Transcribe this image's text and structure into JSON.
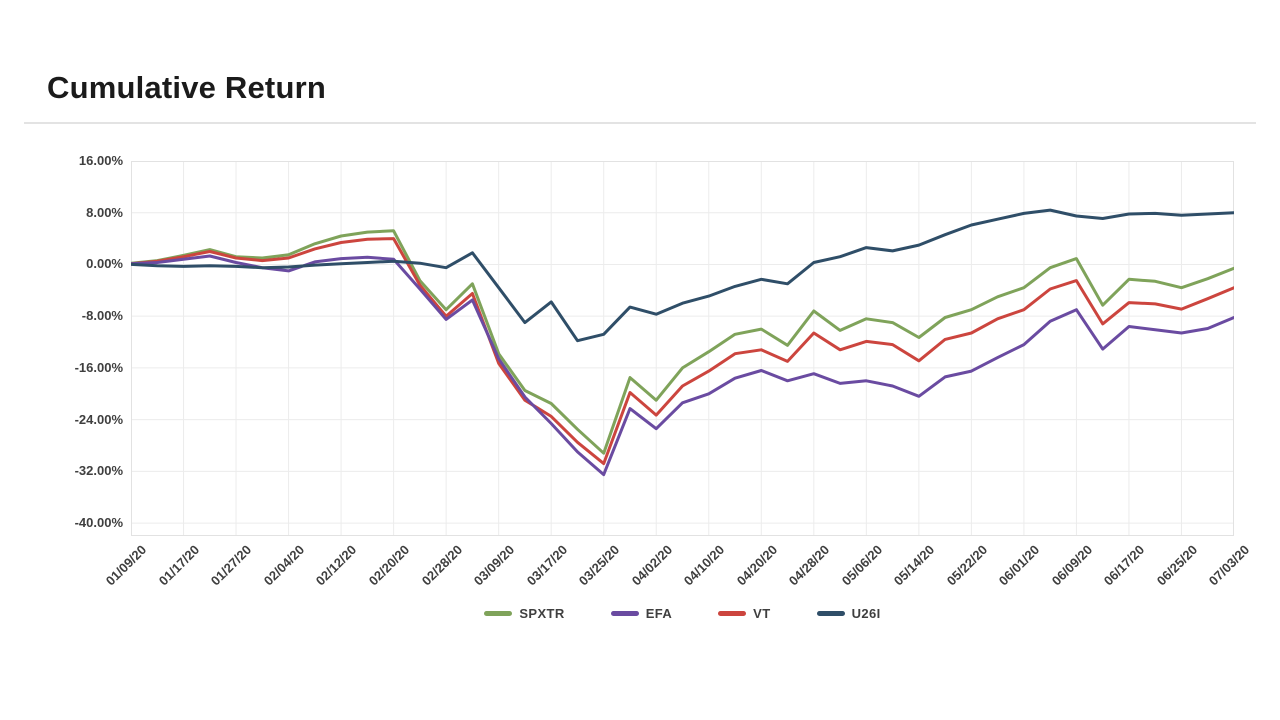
{
  "page": {
    "title": "Cumulative Return"
  },
  "chart_data": {
    "type": "line",
    "title": "Cumulative Return",
    "grid": true,
    "legend_position": "bottom",
    "x_axis": {
      "tick_labels": [
        "01/09/20",
        "01/17/20",
        "01/27/20",
        "02/04/20",
        "02/12/20",
        "02/20/20",
        "02/28/20",
        "03/09/20",
        "03/17/20",
        "03/25/20",
        "04/02/20",
        "04/10/20",
        "04/20/20",
        "04/28/20",
        "05/06/20",
        "05/14/20",
        "05/22/20",
        "06/01/20",
        "06/09/20",
        "06/17/20",
        "06/25/20",
        "07/03/20"
      ],
      "rotation_deg": -45
    },
    "y_axis": {
      "unit": "%",
      "tick_labels": [
        "16.00%",
        "8.00%",
        "0.00%",
        "-8.00%",
        "-16.00%",
        "-24.00%",
        "-32.00%",
        "-40.00%"
      ],
      "tick_values": [
        16,
        8,
        0,
        -8,
        -16,
        -24,
        -32,
        -40
      ],
      "top_value": 16,
      "bottom_value": -42
    },
    "x": [
      0,
      0.5,
      1,
      1.5,
      2,
      2.5,
      3,
      3.5,
      4,
      4.5,
      5,
      5.5,
      6,
      6.5,
      7,
      7.5,
      8,
      8.5,
      9,
      9.5,
      10,
      10.5,
      11,
      11.5,
      12,
      12.5,
      13,
      13.5,
      14,
      14.5,
      15,
      15.5,
      16,
      16.5,
      17,
      17.5,
      18,
      18.5,
      19,
      19.5,
      20,
      20.5,
      21
    ],
    "series": [
      {
        "name": "SPXTR",
        "color": "#7FA35A",
        "values": [
          0.2,
          0.6,
          1.4,
          2.3,
          1.2,
          1.0,
          1.5,
          3.2,
          4.4,
          5.0,
          5.2,
          -2.5,
          -7.0,
          -3.0,
          -13.8,
          -19.5,
          -21.5,
          -25.5,
          -29.2,
          -17.5,
          -21.0,
          -16.0,
          -13.5,
          -10.8,
          -10.0,
          -12.5,
          -7.2,
          -10.2,
          -8.4,
          -9.0,
          -11.3,
          -8.2,
          -7.0,
          -5.0,
          -3.6,
          -0.5,
          0.9,
          -6.3,
          -2.3,
          -2.6,
          -3.6,
          -2.2,
          -0.6
        ]
      },
      {
        "name": "EFA",
        "color": "#6A4BA1",
        "values": [
          0.1,
          0.3,
          0.8,
          1.3,
          0.3,
          -0.5,
          -1.0,
          0.4,
          0.9,
          1.1,
          0.8,
          -3.8,
          -8.5,
          -5.5,
          -14.6,
          -20.5,
          -24.6,
          -29.0,
          -32.5,
          -22.3,
          -25.4,
          -21.4,
          -20.0,
          -17.6,
          -16.4,
          -18.0,
          -16.9,
          -18.4,
          -18.0,
          -18.8,
          -20.4,
          -17.4,
          -16.5,
          -14.4,
          -12.4,
          -8.8,
          -7.0,
          -13.1,
          -9.6,
          -10.1,
          -10.6,
          -9.9,
          -8.2
        ]
      },
      {
        "name": "VT",
        "color": "#CC453E",
        "values": [
          0.1,
          0.5,
          1.2,
          2.0,
          1.0,
          0.6,
          1.0,
          2.4,
          3.4,
          3.9,
          4.0,
          -3.2,
          -8.0,
          -4.5,
          -15.3,
          -21.0,
          -23.5,
          -27.5,
          -30.8,
          -19.8,
          -23.3,
          -18.8,
          -16.5,
          -13.8,
          -13.2,
          -15.0,
          -10.6,
          -13.2,
          -11.9,
          -12.4,
          -14.9,
          -11.6,
          -10.6,
          -8.4,
          -7.0,
          -3.8,
          -2.5,
          -9.2,
          -5.9,
          -6.1,
          -6.9,
          -5.3,
          -3.6
        ]
      },
      {
        "name": "U26I",
        "color": "#2F4E68",
        "values": [
          0.0,
          -0.2,
          -0.3,
          -0.2,
          -0.3,
          -0.5,
          -0.4,
          -0.1,
          0.1,
          0.3,
          0.5,
          0.2,
          -0.5,
          1.8,
          -3.6,
          -9.0,
          -5.8,
          -11.8,
          -10.8,
          -6.6,
          -7.7,
          -6.0,
          -4.9,
          -3.4,
          -2.3,
          -3.0,
          0.3,
          1.2,
          2.6,
          2.1,
          3.0,
          4.6,
          6.1,
          7.0,
          7.9,
          8.4,
          7.5,
          7.1,
          7.8,
          7.9,
          7.6,
          7.8,
          8.0
        ]
      }
    ],
    "colors": {
      "grid_line": "#ececec",
      "plot_border": "#e2e2e2",
      "tick_text": "#3f3f3f"
    }
  }
}
